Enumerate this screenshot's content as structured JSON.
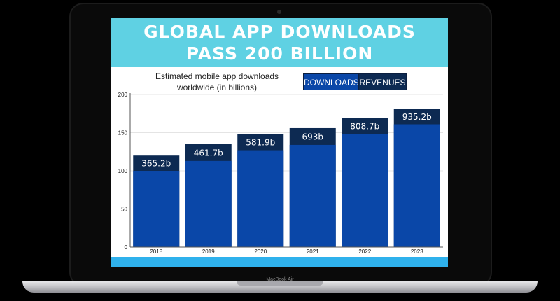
{
  "header": {
    "title_line1": "GLOBAL APP DOWNLOADS",
    "title_line2": "PASS 200 BILLION"
  },
  "subtitle": {
    "line1": "Estimated mobile app downloads",
    "line2": "worldwide (in billions)"
  },
  "toggles": {
    "downloads_label": "DOWNLOADS",
    "revenues_label": "REVENUES"
  },
  "device": {
    "model_label": "MacBook Air"
  },
  "colors": {
    "title_band": "#5fd1e3",
    "bar": "#0a47a8",
    "label_box": "#0d2a52",
    "bottom_band": "#2fb1ec"
  },
  "chart_data": {
    "type": "bar",
    "title": "Estimated mobile app downloads worldwide (in billions)",
    "categories": [
      "2018",
      "2019",
      "2020",
      "2021",
      "2022",
      "2023"
    ],
    "values": [
      100,
      113,
      127,
      134,
      148,
      161
    ],
    "label_box_top": [
      120,
      135,
      148,
      156,
      169,
      181
    ],
    "data_labels": [
      "365.2b",
      "461.7b",
      "581.9b",
      "693b",
      "808.7b",
      "935.2b"
    ],
    "yticks": [
      "0",
      "50",
      "100",
      "150",
      "200"
    ],
    "ylim": [
      0,
      200
    ],
    "xlabel": "",
    "ylabel": "",
    "grid": true
  }
}
